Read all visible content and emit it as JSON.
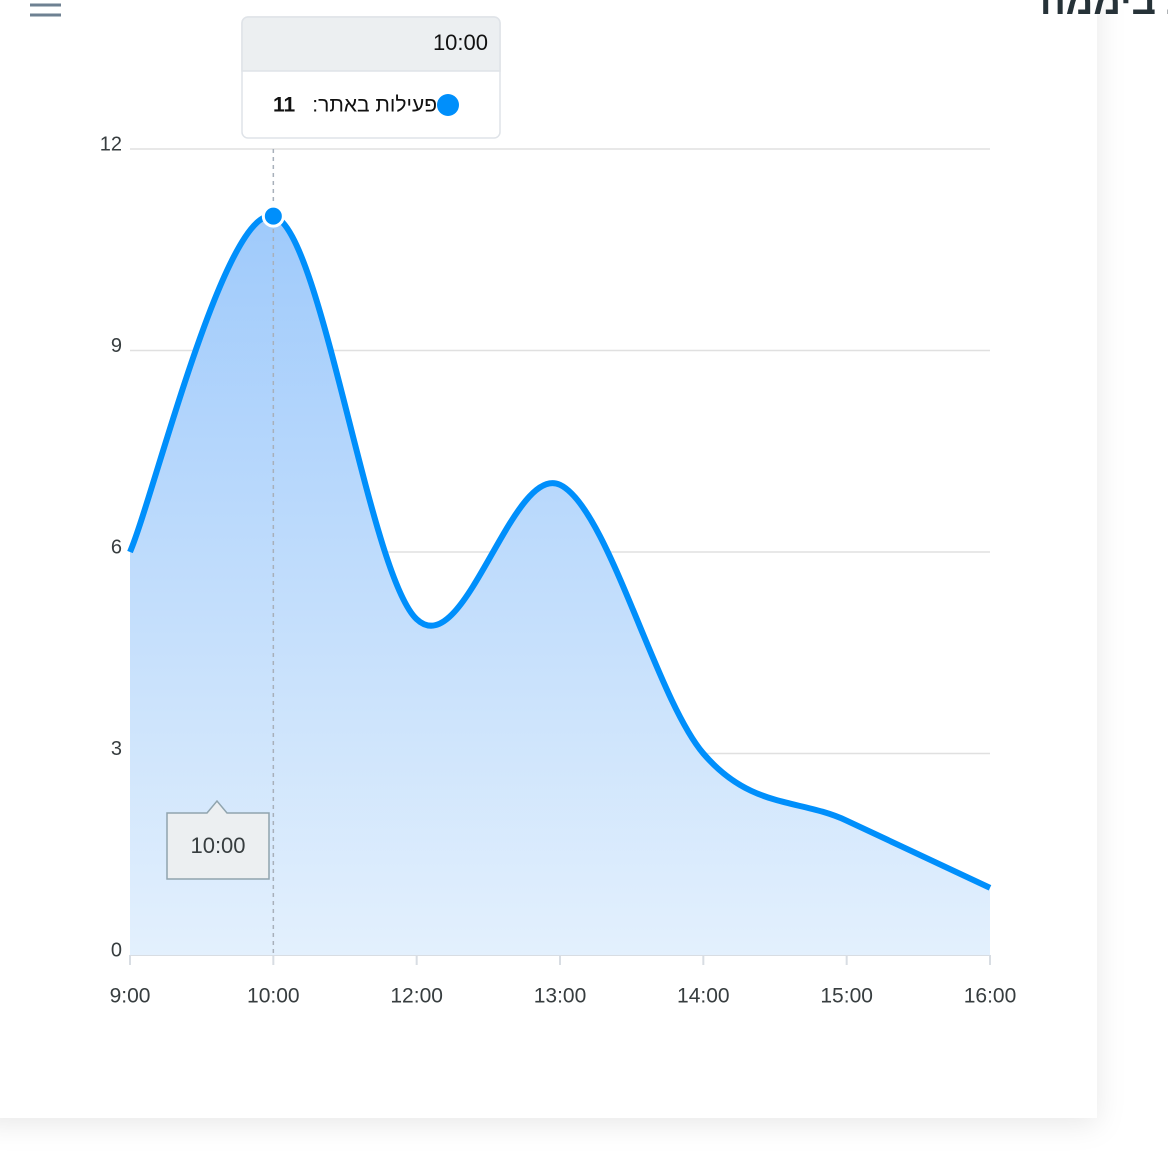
{
  "chart_data": {
    "type": "area",
    "title": "זמני מכירות ביממה",
    "categories": [
      "9:00",
      "10:00",
      "12:00",
      "13:00",
      "14:00",
      "15:00",
      "16:00"
    ],
    "series": [
      {
        "name": "פעילות באתר",
        "color": "#008ffb",
        "values": [
          6,
          11,
          5,
          7,
          3,
          2,
          1
        ]
      }
    ],
    "ylim": [
      0,
      12
    ],
    "yticks": [
      0,
      3,
      6,
      9,
      12
    ],
    "grid": true,
    "tooltip": {
      "index": 1,
      "label": "פעילות באתר:"
    }
  }
}
